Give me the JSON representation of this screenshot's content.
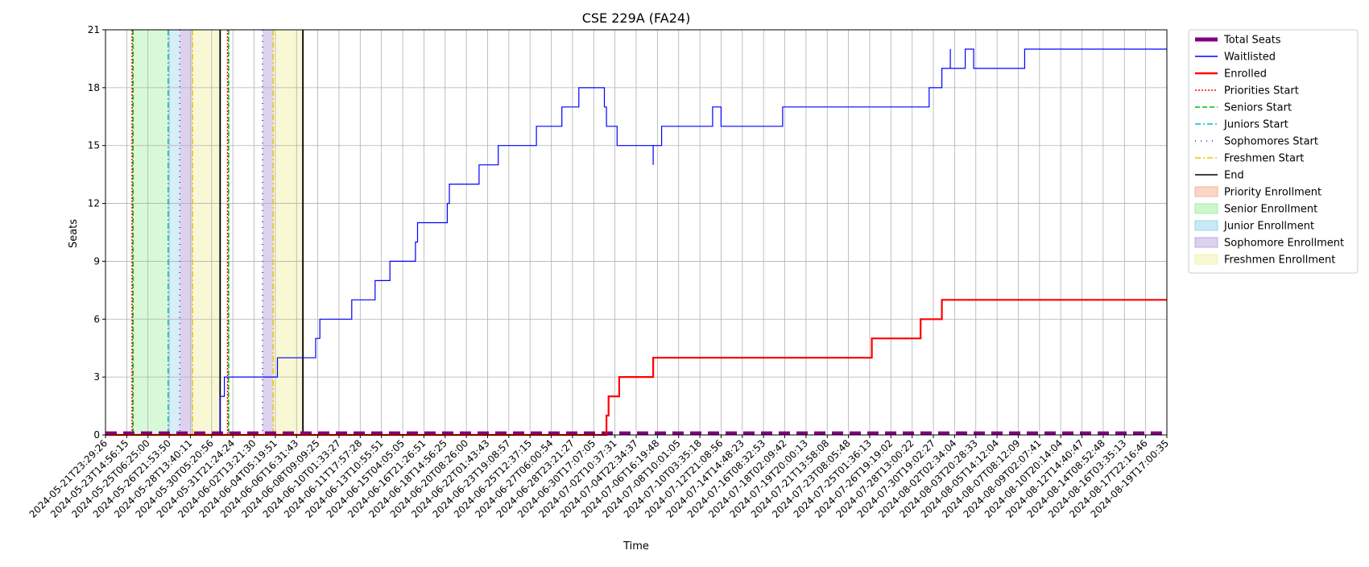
{
  "chart_data": {
    "type": "line",
    "title": "CSE 229A (FA24)",
    "xlabel": "Time",
    "ylabel": "Seats",
    "ylim": [
      0,
      21
    ],
    "yticks": [
      0,
      3,
      6,
      9,
      12,
      15,
      18,
      21
    ],
    "grid": true,
    "legend_position": "outside-right",
    "x_tick_labels": [
      "2024-05-21T23:29:26",
      "2024-05-23T14:56:15",
      "2024-05-25T06:25:00",
      "2024-05-26T21:53:50",
      "2024-05-28T13:40:11",
      "2024-05-30T05:20:56",
      "2024-05-31T21:24:24",
      "2024-06-02T13:21:30",
      "2024-06-04T05:19:51",
      "2024-06-06T16:31:43",
      "2024-06-08T09:09:25",
      "2024-06-10T01:33:27",
      "2024-06-11T17:57:28",
      "2024-06-13T10:55:51",
      "2024-06-15T04:05:05",
      "2024-06-16T21:26:51",
      "2024-06-18T14:56:25",
      "2024-06-20T08:26:00",
      "2024-06-22T01:43:43",
      "2024-06-23T19:08:57",
      "2024-06-25T12:37:15",
      "2024-06-27T06:00:54",
      "2024-06-28T23:21:27",
      "2024-06-30T17:07:05",
      "2024-07-02T10:37:31",
      "2024-07-04T22:34:37",
      "2024-07-06T16:19:48",
      "2024-07-08T10:01:05",
      "2024-07-10T03:35:18",
      "2024-07-12T21:08:56",
      "2024-07-14T14:48:23",
      "2024-07-16T08:32:53",
      "2024-07-18T02:09:42",
      "2024-07-19T20:00:13",
      "2024-07-21T13:58:08",
      "2024-07-23T08:05:48",
      "2024-07-25T01:36:13",
      "2024-07-26T19:19:02",
      "2024-07-28T13:00:22",
      "2024-07-30T19:02:27",
      "2024-08-02T02:34:04",
      "2024-08-03T20:28:33",
      "2024-08-05T14:12:04",
      "2024-08-07T08:12:09",
      "2024-08-09T02:07:41",
      "2024-08-10T20:14:04",
      "2024-08-12T14:40:47",
      "2024-08-14T08:52:48",
      "2024-08-16T03:35:13",
      "2024-08-17T22:16:46",
      "2024-08-19T17:00:35"
    ],
    "x_index_range": [
      0,
      50
    ],
    "series": [
      {
        "name": "Total Seats",
        "color": "#800080",
        "style": "dashed",
        "points": [
          [
            0,
            0.1
          ],
          [
            50,
            0.1
          ]
        ]
      },
      {
        "name": "Waitlisted",
        "color": "#0000ff",
        "style": "solid",
        "points": [
          [
            0,
            0
          ],
          [
            5.4,
            0
          ],
          [
            5.4,
            2
          ],
          [
            5.6,
            2
          ],
          [
            5.6,
            3
          ],
          [
            8.1,
            3
          ],
          [
            8.1,
            4
          ],
          [
            9.9,
            4
          ],
          [
            9.9,
            5
          ],
          [
            10.1,
            5
          ],
          [
            10.1,
            6
          ],
          [
            11.6,
            6
          ],
          [
            11.6,
            7
          ],
          [
            12.7,
            7
          ],
          [
            12.7,
            8
          ],
          [
            13.4,
            8
          ],
          [
            13.4,
            9
          ],
          [
            14.6,
            9
          ],
          [
            14.6,
            10
          ],
          [
            14.7,
            10
          ],
          [
            14.7,
            11
          ],
          [
            16.1,
            11
          ],
          [
            16.1,
            12
          ],
          [
            16.2,
            12
          ],
          [
            16.2,
            13
          ],
          [
            17.6,
            13
          ],
          [
            17.6,
            14
          ],
          [
            18.5,
            14
          ],
          [
            18.5,
            15
          ],
          [
            20.3,
            15
          ],
          [
            20.3,
            16
          ],
          [
            21.5,
            16
          ],
          [
            21.5,
            17
          ],
          [
            22.3,
            17
          ],
          [
            22.3,
            18
          ],
          [
            23.5,
            18
          ],
          [
            23.5,
            17
          ],
          [
            23.6,
            17
          ],
          [
            23.6,
            16
          ],
          [
            24.1,
            16
          ],
          [
            24.1,
            15
          ],
          [
            25.8,
            15
          ],
          [
            25.8,
            14
          ],
          [
            25.8,
            15
          ],
          [
            26.2,
            15
          ],
          [
            26.2,
            16
          ],
          [
            28.6,
            16
          ],
          [
            28.6,
            17
          ],
          [
            29.0,
            17
          ],
          [
            29.0,
            16
          ],
          [
            31.9,
            16
          ],
          [
            31.9,
            17
          ],
          [
            38.8,
            17
          ],
          [
            38.8,
            18
          ],
          [
            39.4,
            18
          ],
          [
            39.4,
            19
          ],
          [
            39.8,
            19
          ],
          [
            39.8,
            20
          ],
          [
            39.8,
            19
          ],
          [
            40.5,
            19
          ],
          [
            40.5,
            20
          ],
          [
            40.9,
            20
          ],
          [
            40.9,
            19
          ],
          [
            43.3,
            19
          ],
          [
            43.3,
            20
          ],
          [
            50,
            20
          ]
        ]
      },
      {
        "name": "Enrolled",
        "color": "#ff0000",
        "style": "solid",
        "points": [
          [
            0,
            0
          ],
          [
            23.6,
            0
          ],
          [
            23.6,
            1
          ],
          [
            23.7,
            1
          ],
          [
            23.7,
            2
          ],
          [
            24.2,
            2
          ],
          [
            24.2,
            3
          ],
          [
            25.8,
            3
          ],
          [
            25.8,
            4
          ],
          [
            36.1,
            4
          ],
          [
            36.1,
            5
          ],
          [
            38.4,
            5
          ],
          [
            38.4,
            6
          ],
          [
            39.4,
            6
          ],
          [
            39.4,
            7
          ],
          [
            50,
            7
          ]
        ]
      }
    ],
    "vlines": [
      {
        "name": "Priorities Start",
        "color": "#ff0000",
        "style": "dotted",
        "x": [
          1.25,
          5.75
        ]
      },
      {
        "name": "Seniors Start",
        "color": "#00bb00",
        "style": "dashed",
        "x": [
          1.3,
          5.8
        ]
      },
      {
        "name": "Juniors Start",
        "color": "#00bfbf",
        "style": "dashdot",
        "x": [
          2.95
        ]
      },
      {
        "name": "Sophomores Start",
        "color": "#6a0dad",
        "style": "loosedot",
        "x": [
          3.5,
          7.4
        ]
      },
      {
        "name": "Freshmen Start",
        "color": "#e6c800",
        "style": "dashdot",
        "x": [
          4.1,
          7.9
        ]
      },
      {
        "name": "End",
        "color": "#000000",
        "style": "solid",
        "x": [
          5.4,
          9.3
        ]
      }
    ],
    "spans": [
      {
        "name": "Priority Enrollment",
        "color": "#f4a582",
        "opacity": 0.35,
        "ranges": [
          [
            1.25,
            1.3
          ],
          [
            5.75,
            5.8
          ]
        ]
      },
      {
        "name": "Senior Enrollment",
        "color": "#90ee90",
        "opacity": 0.35,
        "ranges": [
          [
            1.3,
            2.95
          ]
        ]
      },
      {
        "name": "Junior Enrollment",
        "color": "#87ceeb",
        "opacity": 0.35,
        "ranges": [
          [
            2.95,
            3.5
          ]
        ]
      },
      {
        "name": "Sophomore Enrollment",
        "color": "#b19cd9",
        "opacity": 0.45,
        "ranges": [
          [
            3.5,
            4.1
          ],
          [
            7.4,
            7.9
          ]
        ]
      },
      {
        "name": "Freshmen Enrollment",
        "color": "#f0f0a0",
        "opacity": 0.45,
        "ranges": [
          [
            4.1,
            5.4
          ],
          [
            7.9,
            9.3
          ]
        ]
      }
    ],
    "legend": [
      {
        "label": "Total Seats",
        "kind": "thickline",
        "color": "#800080"
      },
      {
        "label": "Waitlisted",
        "kind": "line",
        "color": "#0000ff",
        "style": "solid"
      },
      {
        "label": "Enrolled",
        "kind": "line",
        "color": "#ff0000",
        "style": "solid",
        "thick": true
      },
      {
        "label": "Priorities Start",
        "kind": "line",
        "color": "#ff0000",
        "style": "dotted"
      },
      {
        "label": "Seniors Start",
        "kind": "line",
        "color": "#00bb00",
        "style": "dashed"
      },
      {
        "label": "Juniors Start",
        "kind": "line",
        "color": "#00bfbf",
        "style": "dashdot"
      },
      {
        "label": "Sophomores Start",
        "kind": "line",
        "color": "#6a0dad",
        "style": "loosedot"
      },
      {
        "label": "Freshmen Start",
        "kind": "line",
        "color": "#e6c800",
        "style": "dashdot"
      },
      {
        "label": "End",
        "kind": "line",
        "color": "#000000",
        "style": "solid"
      },
      {
        "label": "Priority Enrollment",
        "kind": "patch",
        "color": "#f4a582"
      },
      {
        "label": "Senior Enrollment",
        "kind": "patch",
        "color": "#90ee90"
      },
      {
        "label": "Junior Enrollment",
        "kind": "patch",
        "color": "#87ceeb"
      },
      {
        "label": "Sophomore Enrollment",
        "kind": "patch",
        "color": "#b19cd9"
      },
      {
        "label": "Freshmen Enrollment",
        "kind": "patch",
        "color": "#f0f0a0"
      }
    ]
  }
}
